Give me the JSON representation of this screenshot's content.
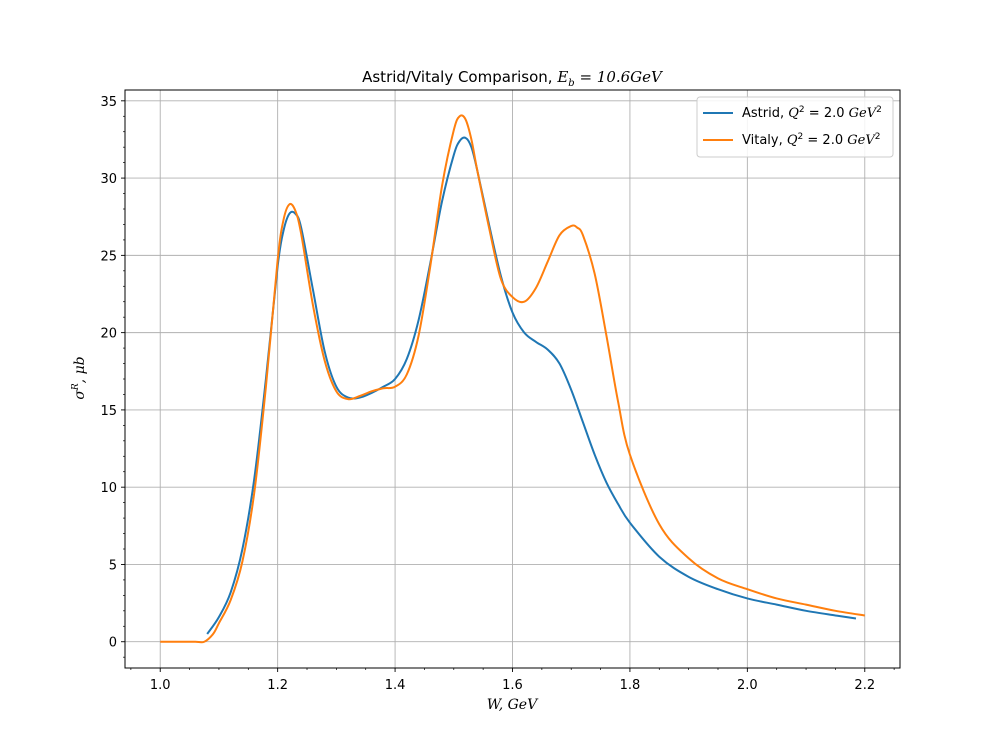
{
  "chart_data": {
    "type": "line",
    "title": "Astrid/Vitaly Comparison, E_b = 10.6GeV",
    "title_parts": {
      "prefix": "Astrid/Vitaly Comparison, ",
      "main": "E",
      "sub": "b",
      "suffix": " = 10.6GeV"
    },
    "xlabel": "W, GeV",
    "ylabel": "σ^R, μb",
    "ylabel_parts": {
      "main": "σ",
      "sup": "R",
      "suffix": ", μb"
    },
    "xlim": [
      0.94,
      2.26
    ],
    "ylim": [
      -1.7,
      35.7
    ],
    "xticks": [
      1.0,
      1.2,
      1.4,
      1.6,
      1.8,
      2.0,
      2.2
    ],
    "xtick_labels": [
      "1.0",
      "1.2",
      "1.4",
      "1.6",
      "1.8",
      "2.0",
      "2.2"
    ],
    "yticks": [
      0,
      5,
      10,
      15,
      20,
      25,
      30,
      35
    ],
    "ytick_labels": [
      "0",
      "5",
      "10",
      "15",
      "20",
      "25",
      "30",
      "35"
    ],
    "grid": true,
    "legend_position": "top-right",
    "series": [
      {
        "name": "Astrid, Q^2 = 2.0 GeV^2",
        "legend_parts": {
          "prefix": "Astrid, ",
          "q": "Q",
          "qsup": "2",
          "mid": " = 2.0 ",
          "unit": "GeV",
          "unitsup": "2"
        },
        "color": "#1f77b4",
        "x": [
          1.08,
          1.1,
          1.12,
          1.14,
          1.16,
          1.18,
          1.2,
          1.21,
          1.22,
          1.23,
          1.24,
          1.26,
          1.28,
          1.3,
          1.32,
          1.34,
          1.36,
          1.38,
          1.4,
          1.42,
          1.44,
          1.46,
          1.48,
          1.5,
          1.51,
          1.52,
          1.53,
          1.54,
          1.56,
          1.58,
          1.6,
          1.62,
          1.64,
          1.66,
          1.68,
          1.7,
          1.72,
          1.74,
          1.76,
          1.78,
          1.8,
          1.85,
          1.9,
          1.95,
          2.0,
          2.05,
          2.1,
          2.15,
          2.185
        ],
        "y": [
          0.5,
          1.6,
          3.2,
          6.0,
          10.5,
          17.0,
          24.3,
          26.6,
          27.7,
          27.7,
          26.8,
          22.8,
          18.8,
          16.5,
          15.8,
          15.8,
          16.1,
          16.5,
          17.0,
          18.3,
          20.8,
          24.5,
          28.5,
          31.5,
          32.4,
          32.6,
          32.0,
          30.5,
          27.0,
          23.7,
          21.3,
          20.0,
          19.4,
          18.9,
          18.0,
          16.3,
          14.2,
          12.1,
          10.3,
          8.9,
          7.7,
          5.5,
          4.2,
          3.4,
          2.8,
          2.4,
          2.0,
          1.7,
          1.5
        ]
      },
      {
        "name": "Vitaly, Q^2 = 2.0 GeV^2",
        "legend_parts": {
          "prefix": "Vitaly, ",
          "q": "Q",
          "qsup": "2",
          "mid": " = 2.0 ",
          "unit": "GeV",
          "unitsup": "2"
        },
        "color": "#ff7f0e",
        "x": [
          1.0,
          1.02,
          1.04,
          1.06,
          1.075,
          1.09,
          1.1,
          1.12,
          1.14,
          1.16,
          1.18,
          1.2,
          1.21,
          1.22,
          1.23,
          1.24,
          1.26,
          1.28,
          1.3,
          1.32,
          1.34,
          1.36,
          1.38,
          1.4,
          1.42,
          1.44,
          1.46,
          1.48,
          1.5,
          1.51,
          1.52,
          1.53,
          1.54,
          1.56,
          1.58,
          1.6,
          1.62,
          1.64,
          1.66,
          1.68,
          1.7,
          1.71,
          1.72,
          1.74,
          1.76,
          1.78,
          1.8,
          1.85,
          1.9,
          1.95,
          2.0,
          2.05,
          2.1,
          2.15,
          2.2
        ],
        "y": [
          0.0,
          0.0,
          0.0,
          0.0,
          0.0,
          0.5,
          1.2,
          2.7,
          5.2,
          9.6,
          16.5,
          24.7,
          27.3,
          28.3,
          27.9,
          26.4,
          21.8,
          18.2,
          16.2,
          15.7,
          15.9,
          16.2,
          16.4,
          16.5,
          17.3,
          19.8,
          24.3,
          29.5,
          33.1,
          34.0,
          33.8,
          32.5,
          30.5,
          26.8,
          23.5,
          22.3,
          22.0,
          22.9,
          24.6,
          26.3,
          26.9,
          26.8,
          26.3,
          23.8,
          19.8,
          15.5,
          12.1,
          7.6,
          5.4,
          4.1,
          3.4,
          2.8,
          2.4,
          2.0,
          1.7
        ]
      }
    ]
  }
}
